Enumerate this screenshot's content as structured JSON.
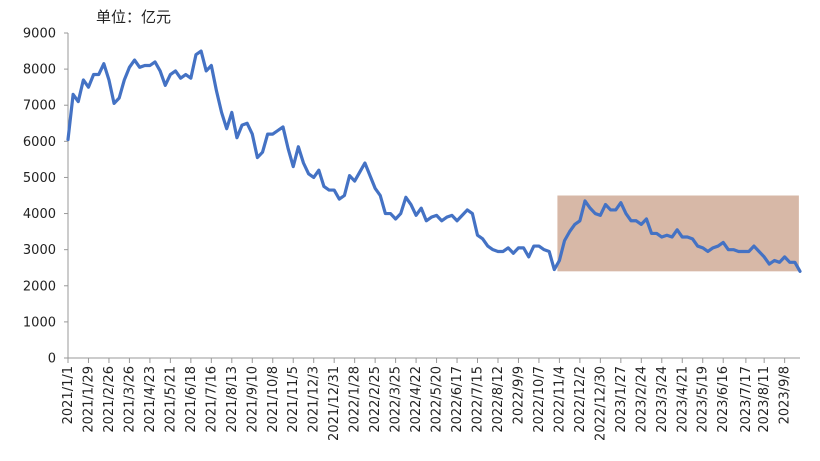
{
  "chart_data": {
    "type": "line",
    "unit_label": "单位：亿元",
    "ylim": [
      0,
      9000
    ],
    "yticks": [
      0,
      1000,
      2000,
      3000,
      4000,
      5000,
      6000,
      7000,
      8000,
      9000
    ],
    "grid": false,
    "legend": "none",
    "line_color": "#4472C4",
    "highlight_color": "#C9A08A",
    "x_tick_labels": [
      "2021/1/1",
      "2021/1/29",
      "2021/2/26",
      "2021/3/26",
      "2021/4/23",
      "2021/5/21",
      "2021/6/18",
      "2021/7/16",
      "2021/8/13",
      "2021/9/10",
      "2021/10/8",
      "2021/11/5",
      "2021/12/3",
      "2021/12/31",
      "2022/1/28",
      "2022/2/25",
      "2022/3/25",
      "2022/4/22",
      "2022/5/20",
      "2022/6/17",
      "2022/7/15",
      "2022/8/12",
      "2022/9/9",
      "2022/10/7",
      "2022/11/4",
      "2022/12/2",
      "2022/12/30",
      "2023/1/27",
      "2023/2/24",
      "2023/3/24",
      "2023/4/21",
      "2023/5/19",
      "2023/6/16",
      "2023/7/17",
      "2023/8/11",
      "2023/9/8"
    ],
    "series": [
      {
        "values": [
          6050,
          7300,
          7100,
          7700,
          7500,
          7850,
          7850,
          8150,
          7700,
          7050,
          7200,
          7700,
          8050,
          8250,
          8050,
          8100,
          8100,
          8200,
          7950,
          7550,
          7850,
          7950,
          7750,
          7850,
          7750,
          8400,
          8500,
          7950,
          8100,
          7400,
          6800,
          6350,
          6800,
          6100,
          6450,
          6500,
          6200,
          5550,
          5700,
          6200,
          6200,
          6300,
          6400,
          5800,
          5300,
          5850,
          5400,
          5100,
          5000,
          5200,
          4750,
          4650,
          4650,
          4400,
          4500,
          5050,
          4900,
          5150,
          5400,
          5050,
          4700,
          4500,
          4000,
          4000,
          3850,
          4000,
          4450,
          4250,
          3950,
          4150,
          3800,
          3900,
          3950,
          3800,
          3900,
          3950,
          3800,
          3950,
          4100,
          4000,
          3400,
          3300,
          3100,
          3000,
          2950,
          2950,
          3050,
          2900,
          3050,
          3050,
          2800,
          3100,
          3100,
          3000,
          2950,
          2450,
          2700,
          3250,
          3500,
          3700,
          3800,
          4350,
          4150,
          4000,
          3950,
          4250,
          4100,
          4100,
          4300,
          4000,
          3800,
          3800,
          3700,
          3850,
          3450,
          3450,
          3350,
          3400,
          3350,
          3550,
          3350,
          3350,
          3300,
          3100,
          3050,
          2950,
          3050,
          3100,
          3200,
          3000,
          3000,
          2950,
          2950,
          2950,
          3100,
          2950,
          2800,
          2600,
          2700,
          2650,
          2800,
          2650,
          2650,
          2400
        ]
      }
    ],
    "highlight": {
      "x_start": "2022/11/4",
      "x_end": "2023/9/22",
      "y_range": [
        2400,
        4500
      ]
    }
  }
}
